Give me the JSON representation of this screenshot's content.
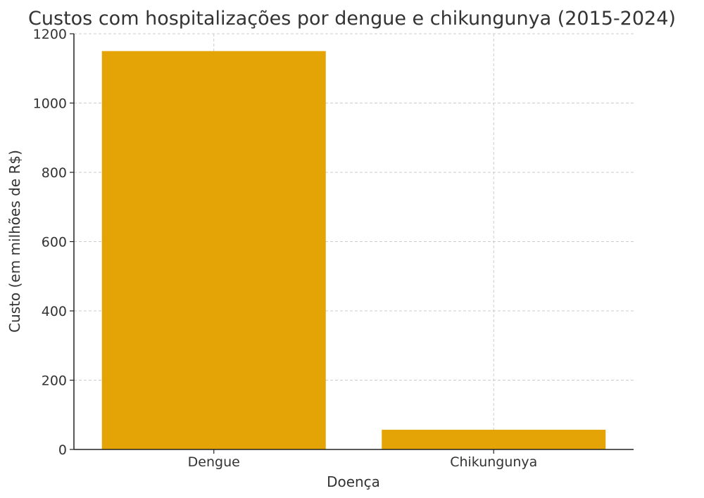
{
  "chart_data": {
    "type": "bar",
    "title": "Custos com hospitalizações por dengue e chikungunya (2015-2024)",
    "xlabel": "Doença",
    "ylabel": "Custo (em milhões de R$)",
    "categories": [
      "Dengue",
      "Chikungunya"
    ],
    "values": [
      1150,
      57
    ],
    "ylim": [
      0,
      1200
    ],
    "yticks": [
      0,
      200,
      400,
      600,
      800,
      1000,
      1200
    ],
    "grid": true,
    "bar_color": "#E3A200"
  }
}
